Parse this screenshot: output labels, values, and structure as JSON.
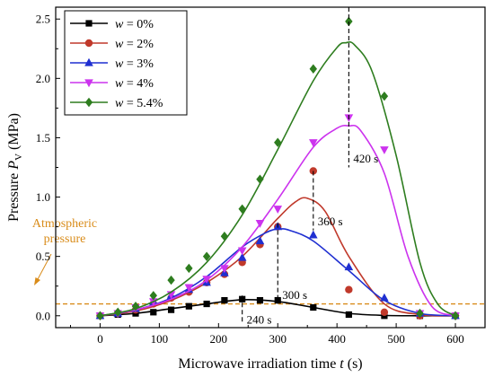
{
  "chart_data": {
    "type": "line",
    "title": "",
    "xlabel": {
      "main": "Microwave irradiation time ",
      "var": "t",
      "unit": " (s)"
    },
    "ylabel": {
      "main": "Pressure ",
      "var": "P",
      "sub": "V",
      "unit": " (MPa)"
    },
    "xlim": [
      -75,
      650
    ],
    "ylim": [
      -0.1,
      2.6
    ],
    "xticks": [
      0,
      100,
      200,
      300,
      400,
      500,
      600
    ],
    "yticks": [
      0.0,
      0.5,
      1.0,
      1.5,
      2.0,
      2.5
    ],
    "xtick_labels": [
      "0",
      "100",
      "200",
      "300",
      "400",
      "500",
      "600"
    ],
    "ytick_labels": [
      "0.0",
      "0.5",
      "1.0",
      "1.5",
      "2.0",
      "2.5"
    ],
    "legend_position": "top-left",
    "grid": false,
    "atmospheric": {
      "value": 0.1,
      "label_lines": [
        "Atmospheric",
        "pressure"
      ],
      "color": "#d98c1a"
    },
    "series": [
      {
        "name": "w = 0%",
        "legend_var": "w",
        "legend_rest": " = 0%",
        "color": "#000000",
        "marker": "square",
        "x": [
          0,
          30,
          60,
          90,
          120,
          150,
          180,
          210,
          240,
          270,
          300,
          360,
          420,
          480,
          540,
          600
        ],
        "y": [
          0.0,
          0.01,
          0.02,
          0.03,
          0.05,
          0.08,
          0.1,
          0.13,
          0.14,
          0.13,
          0.13,
          0.07,
          0.01,
          0.0,
          0.0,
          0.0
        ],
        "fit_x": [
          0,
          60,
          120,
          180,
          240,
          300,
          360,
          420,
          480,
          540,
          600
        ],
        "fit_y": [
          0.0,
          0.02,
          0.06,
          0.1,
          0.135,
          0.12,
          0.07,
          0.02,
          0.003,
          0.0,
          0.0
        ]
      },
      {
        "name": "w = 2%",
        "legend_var": "w",
        "legend_rest": " = 2%",
        "color": "#c0392b",
        "marker": "circle",
        "x": [
          0,
          30,
          60,
          90,
          120,
          150,
          180,
          210,
          240,
          270,
          300,
          360,
          420,
          480,
          540,
          600
        ],
        "y": [
          0.0,
          0.02,
          0.05,
          0.1,
          0.15,
          0.2,
          0.28,
          0.35,
          0.45,
          0.6,
          0.75,
          1.22,
          0.22,
          0.03,
          0.0,
          0.0
        ],
        "fit_x": [
          0,
          60,
          120,
          180,
          240,
          300,
          330,
          350,
          380,
          420,
          480,
          540,
          600
        ],
        "fit_y": [
          0.0,
          0.04,
          0.13,
          0.28,
          0.5,
          0.82,
          0.96,
          0.99,
          0.88,
          0.5,
          0.1,
          0.01,
          0.0
        ]
      },
      {
        "name": "w = 3%",
        "legend_var": "w",
        "legend_rest": " = 3%",
        "color": "#1f2fd1",
        "marker": "triangle-up",
        "x": [
          0,
          30,
          60,
          90,
          120,
          150,
          180,
          210,
          240,
          270,
          300,
          360,
          420,
          480,
          540,
          600
        ],
        "y": [
          0.0,
          0.02,
          0.06,
          0.12,
          0.17,
          0.22,
          0.28,
          0.36,
          0.49,
          0.63,
          0.75,
          0.68,
          0.41,
          0.15,
          0.02,
          0.0
        ],
        "fit_x": [
          0,
          60,
          120,
          180,
          240,
          280,
          300,
          320,
          360,
          420,
          480,
          540,
          600
        ],
        "fit_y": [
          0.0,
          0.05,
          0.15,
          0.33,
          0.58,
          0.7,
          0.73,
          0.72,
          0.63,
          0.38,
          0.13,
          0.02,
          0.0
        ]
      },
      {
        "name": "w = 4%",
        "legend_var": "w",
        "legend_rest": " = 4%",
        "color": "#cc33ee",
        "marker": "triangle-down",
        "x": [
          0,
          30,
          60,
          90,
          120,
          150,
          180,
          210,
          240,
          270,
          300,
          360,
          420,
          480,
          540,
          600
        ],
        "y": [
          0.0,
          0.02,
          0.07,
          0.12,
          0.18,
          0.24,
          0.31,
          0.4,
          0.55,
          0.78,
          0.9,
          1.46,
          1.67,
          1.4,
          0.02,
          0.0
        ],
        "fit_x": [
          0,
          60,
          120,
          180,
          240,
          300,
          360,
          400,
          420,
          440,
          480,
          520,
          560,
          600
        ],
        "fit_y": [
          0.0,
          0.05,
          0.14,
          0.3,
          0.58,
          0.98,
          1.42,
          1.58,
          1.6,
          1.56,
          1.2,
          0.5,
          0.08,
          0.0
        ]
      },
      {
        "name": "w = 5.4%",
        "legend_var": "w",
        "legend_rest": " = 5.4%",
        "color": "#2e7d1f",
        "marker": "diamond",
        "x": [
          0,
          30,
          60,
          90,
          120,
          150,
          180,
          210,
          240,
          270,
          300,
          360,
          420,
          480,
          540,
          600
        ],
        "y": [
          0.0,
          0.03,
          0.08,
          0.17,
          0.3,
          0.4,
          0.5,
          0.67,
          0.9,
          1.15,
          1.46,
          2.08,
          2.48,
          1.85,
          0.02,
          0.0
        ],
        "fit_x": [
          0,
          60,
          120,
          180,
          240,
          300,
          360,
          400,
          415,
          430,
          460,
          500,
          540,
          570,
          600
        ],
        "fit_y": [
          0.0,
          0.06,
          0.2,
          0.45,
          0.85,
          1.4,
          1.98,
          2.26,
          2.3,
          2.28,
          2.05,
          1.35,
          0.45,
          0.1,
          0.0
        ]
      }
    ],
    "annotations": [
      {
        "x": 240,
        "y_top": 0.17,
        "y_bottom": -0.06,
        "label": "240 s",
        "label_x": 243,
        "label_y": -0.03
      },
      {
        "x": 300,
        "y_top": 0.78,
        "y_bottom": 0.1,
        "label": "300 s",
        "label_x": 303,
        "label_y": 0.18
      },
      {
        "x": 360,
        "y_top": 1.22,
        "y_bottom": 0.72,
        "label": "360 s",
        "label_x": 363,
        "label_y": 0.8
      },
      {
        "x": 420,
        "y_top": 2.6,
        "y_bottom": 1.25,
        "label": "420 s",
        "label_x": 423,
        "label_y": 1.33
      }
    ]
  }
}
